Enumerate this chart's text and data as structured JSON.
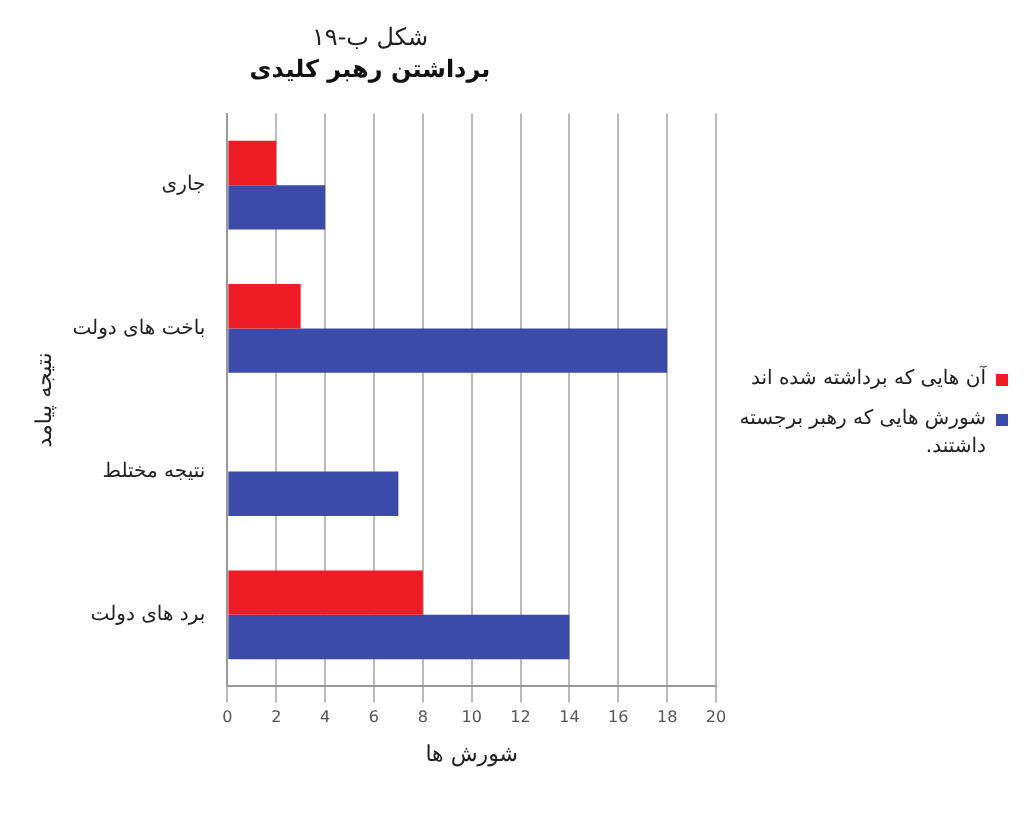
{
  "chart_data": {
    "type": "bar",
    "orientation": "horizontal",
    "title": "شکل ب-۱۹",
    "subtitle": "برداشتن رهبر کلیدی",
    "categories": [
      "جاری",
      "باخت های دولت",
      "نتیجه مختلط",
      "برد های دولت"
    ],
    "series": [
      {
        "name": "آن هایی که برداشته شده اند",
        "color": "#ee1c25",
        "values": [
          2,
          3,
          null,
          8
        ]
      },
      {
        "name": "شورش هایی که رهبر برجسته داشتند.",
        "color": "#3c4aa8",
        "values": [
          4,
          18,
          7,
          14
        ]
      }
    ],
    "xlim": [
      0,
      20
    ],
    "xticks": [
      0,
      2,
      4,
      6,
      8,
      10,
      12,
      14,
      16,
      18,
      20
    ],
    "xlabel": "شورش ها",
    "ylabel": "نتیجه پیامد",
    "grid": "x",
    "legend": "right"
  }
}
